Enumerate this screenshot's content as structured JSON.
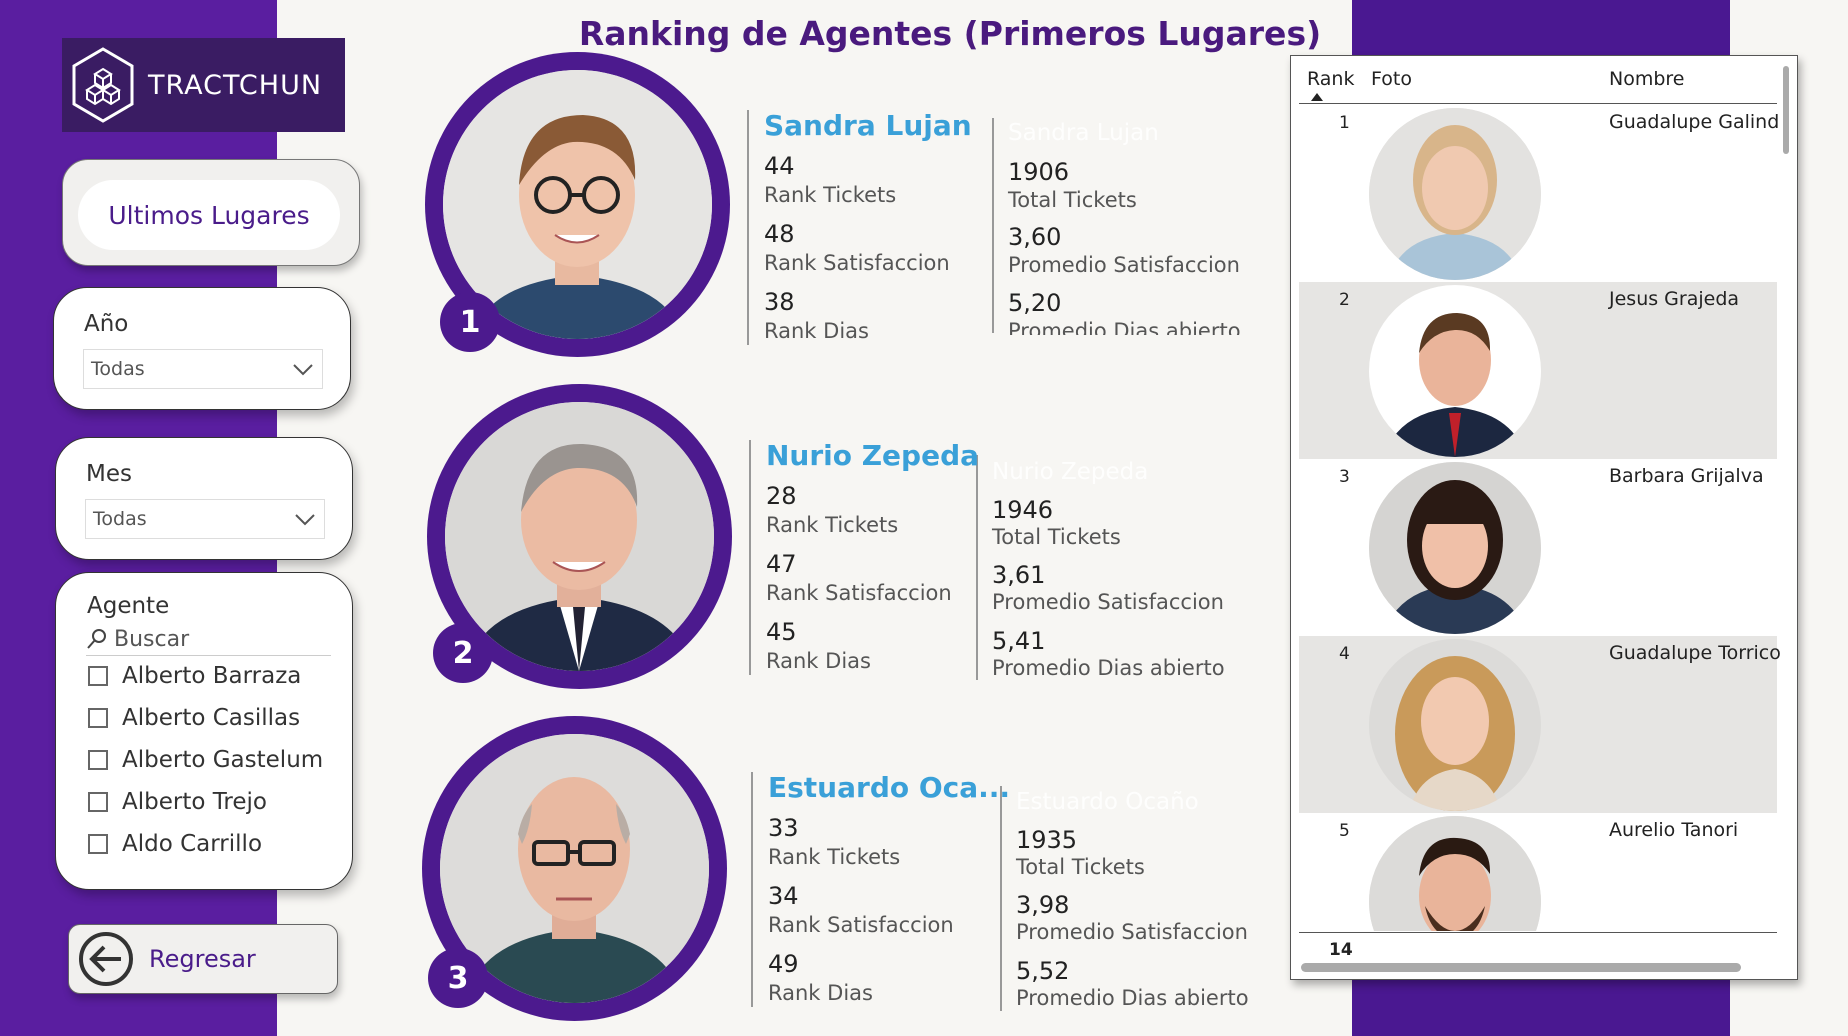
{
  "colors": {
    "accent": "#4c1a8e",
    "name_blue": "#3aa0d8",
    "sidebar": "#5a1ea0"
  },
  "logo": {
    "text": "TRACTCHUN"
  },
  "nav": {
    "ultimos_label": "Ultimos Lugares",
    "back_label": "Regresar"
  },
  "filters": {
    "anio": {
      "title": "Año",
      "value": "Todas"
    },
    "mes": {
      "title": "Mes",
      "value": "Todas"
    },
    "agente": {
      "title": "Agente",
      "search_placeholder": "Buscar",
      "options": [
        "Alberto Barraza",
        "Alberto Casillas",
        "Alberto Gastelum",
        "Alberto Trejo",
        "Aldo Carrillo"
      ]
    }
  },
  "page": {
    "title": "Ranking de Agentes (Primeros Lugares)"
  },
  "top_agents": [
    {
      "rank": "1",
      "name": "Sandra Lujan",
      "ghost_name": "Sandra Lujan",
      "rank_tickets": "44",
      "rank_satisfaccion": "48",
      "rank_dias": "38",
      "total_tickets": "1906",
      "promedio_satisfaccion": "3,60",
      "promedio_dias": "5,20"
    },
    {
      "rank": "2",
      "name": "Nurio Zepeda",
      "ghost_name": "Nurio Zepeda",
      "rank_tickets": "28",
      "rank_satisfaccion": "47",
      "rank_dias": "45",
      "total_tickets": "1946",
      "promedio_satisfaccion": "3,61",
      "promedio_dias": "5,41"
    },
    {
      "rank": "3",
      "name": "Estuardo Oca...",
      "ghost_name": "Estuardo Ocaño",
      "rank_tickets": "33",
      "rank_satisfaccion": "34",
      "rank_dias": "49",
      "total_tickets": "1935",
      "promedio_satisfaccion": "3,98",
      "promedio_dias": "5,52"
    }
  ],
  "labels": {
    "rank_tickets": "Rank Tickets",
    "rank_satisfaccion": "Rank Satisfaccion",
    "rank_dias": "Rank Dias",
    "total_tickets": "Total Tickets",
    "promedio_satisfaccion": "Promedio Satisfaccion",
    "promedio_dias": "Promedio Dias abierto"
  },
  "table": {
    "headers": {
      "rank": "Rank",
      "foto": "Foto",
      "nombre": "Nombre"
    },
    "rows": [
      {
        "rank": "1",
        "nombre": "Guadalupe Galind"
      },
      {
        "rank": "2",
        "nombre": "Jesus Grajeda"
      },
      {
        "rank": "3",
        "nombre": "Barbara Grijalva"
      },
      {
        "rank": "4",
        "nombre": "Guadalupe Torrico"
      },
      {
        "rank": "5",
        "nombre": "Aurelio Tanori"
      }
    ],
    "total": "14"
  }
}
